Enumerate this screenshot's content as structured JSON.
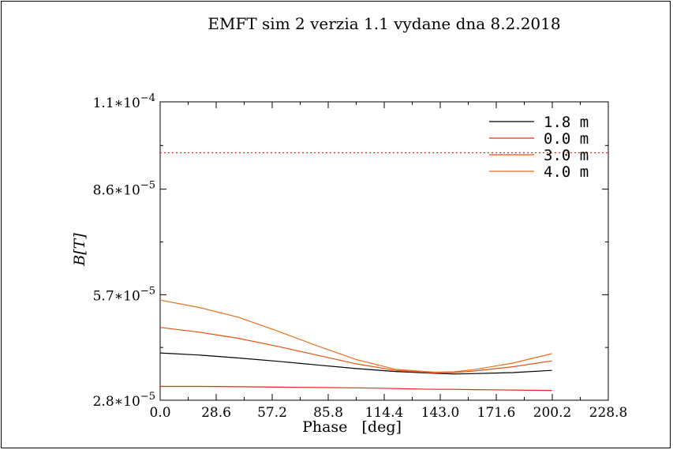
{
  "chart_data": {
    "type": "line",
    "title": "EMFT sim 2 verzia 1.1 vydane dna 8.2.2018",
    "xlabel": "Phase   [deg]",
    "ylabel": "B[T]",
    "xlim": [
      0.0,
      228.8
    ],
    "ylim": [
      2.8e-05,
      0.00011
    ],
    "x_ticks": [
      "0.0",
      "28.6",
      "57.2",
      "85.8",
      "114.4",
      "143.0",
      "171.6",
      "200.2",
      "228.8"
    ],
    "y_ticks": [
      {
        "value": 2.8e-05,
        "mantissa": "2.8",
        "exp": "−5"
      },
      {
        "value": 5.7e-05,
        "mantissa": "5.7",
        "exp": "−5"
      },
      {
        "value": 8.6e-05,
        "mantissa": "8.6",
        "exp": "−5"
      },
      {
        "value": 0.00011,
        "mantissa": "1.1",
        "exp": "−4"
      }
    ],
    "reference_line": {
      "y": 9.6e-05,
      "style": "dotted",
      "color": "#e8281a"
    },
    "legend_position": "top-right",
    "x": [
      0,
      20,
      40,
      60,
      80,
      100,
      120,
      140,
      150,
      160,
      180,
      200
    ],
    "series": [
      {
        "name": "1.8 m",
        "color": "#000000",
        "values": [
          4.1e-05,
          4.04e-05,
          3.96e-05,
          3.87e-05,
          3.77e-05,
          3.67e-05,
          3.59e-05,
          3.54e-05,
          3.52e-05,
          3.53e-05,
          3.56e-05,
          3.62e-05
        ]
      },
      {
        "name": "0.0 m",
        "color": "#e8281a",
        "values": [
          3.18e-05,
          3.18e-05,
          3.17e-05,
          3.16e-05,
          3.15e-05,
          3.14e-05,
          3.12e-05,
          3.1e-05,
          3.1e-05,
          3.09e-05,
          3.08e-05,
          3.07e-05
        ]
      },
      {
        "name": "3.0 m",
        "color": "#e85010",
        "values": [
          4.8e-05,
          4.67e-05,
          4.5e-05,
          4.28e-05,
          4.04e-05,
          3.8e-05,
          3.62e-05,
          3.55e-05,
          3.56e-05,
          3.6e-05,
          3.72e-05,
          3.88e-05
        ]
      },
      {
        "name": "4.0 m",
        "color": "#e8701a",
        "values": [
          5.55e-05,
          5.35e-05,
          5.08e-05,
          4.7e-05,
          4.3e-05,
          3.92e-05,
          3.65e-05,
          3.57e-05,
          3.58e-05,
          3.64e-05,
          3.82e-05,
          4.08e-05
        ]
      }
    ]
  }
}
